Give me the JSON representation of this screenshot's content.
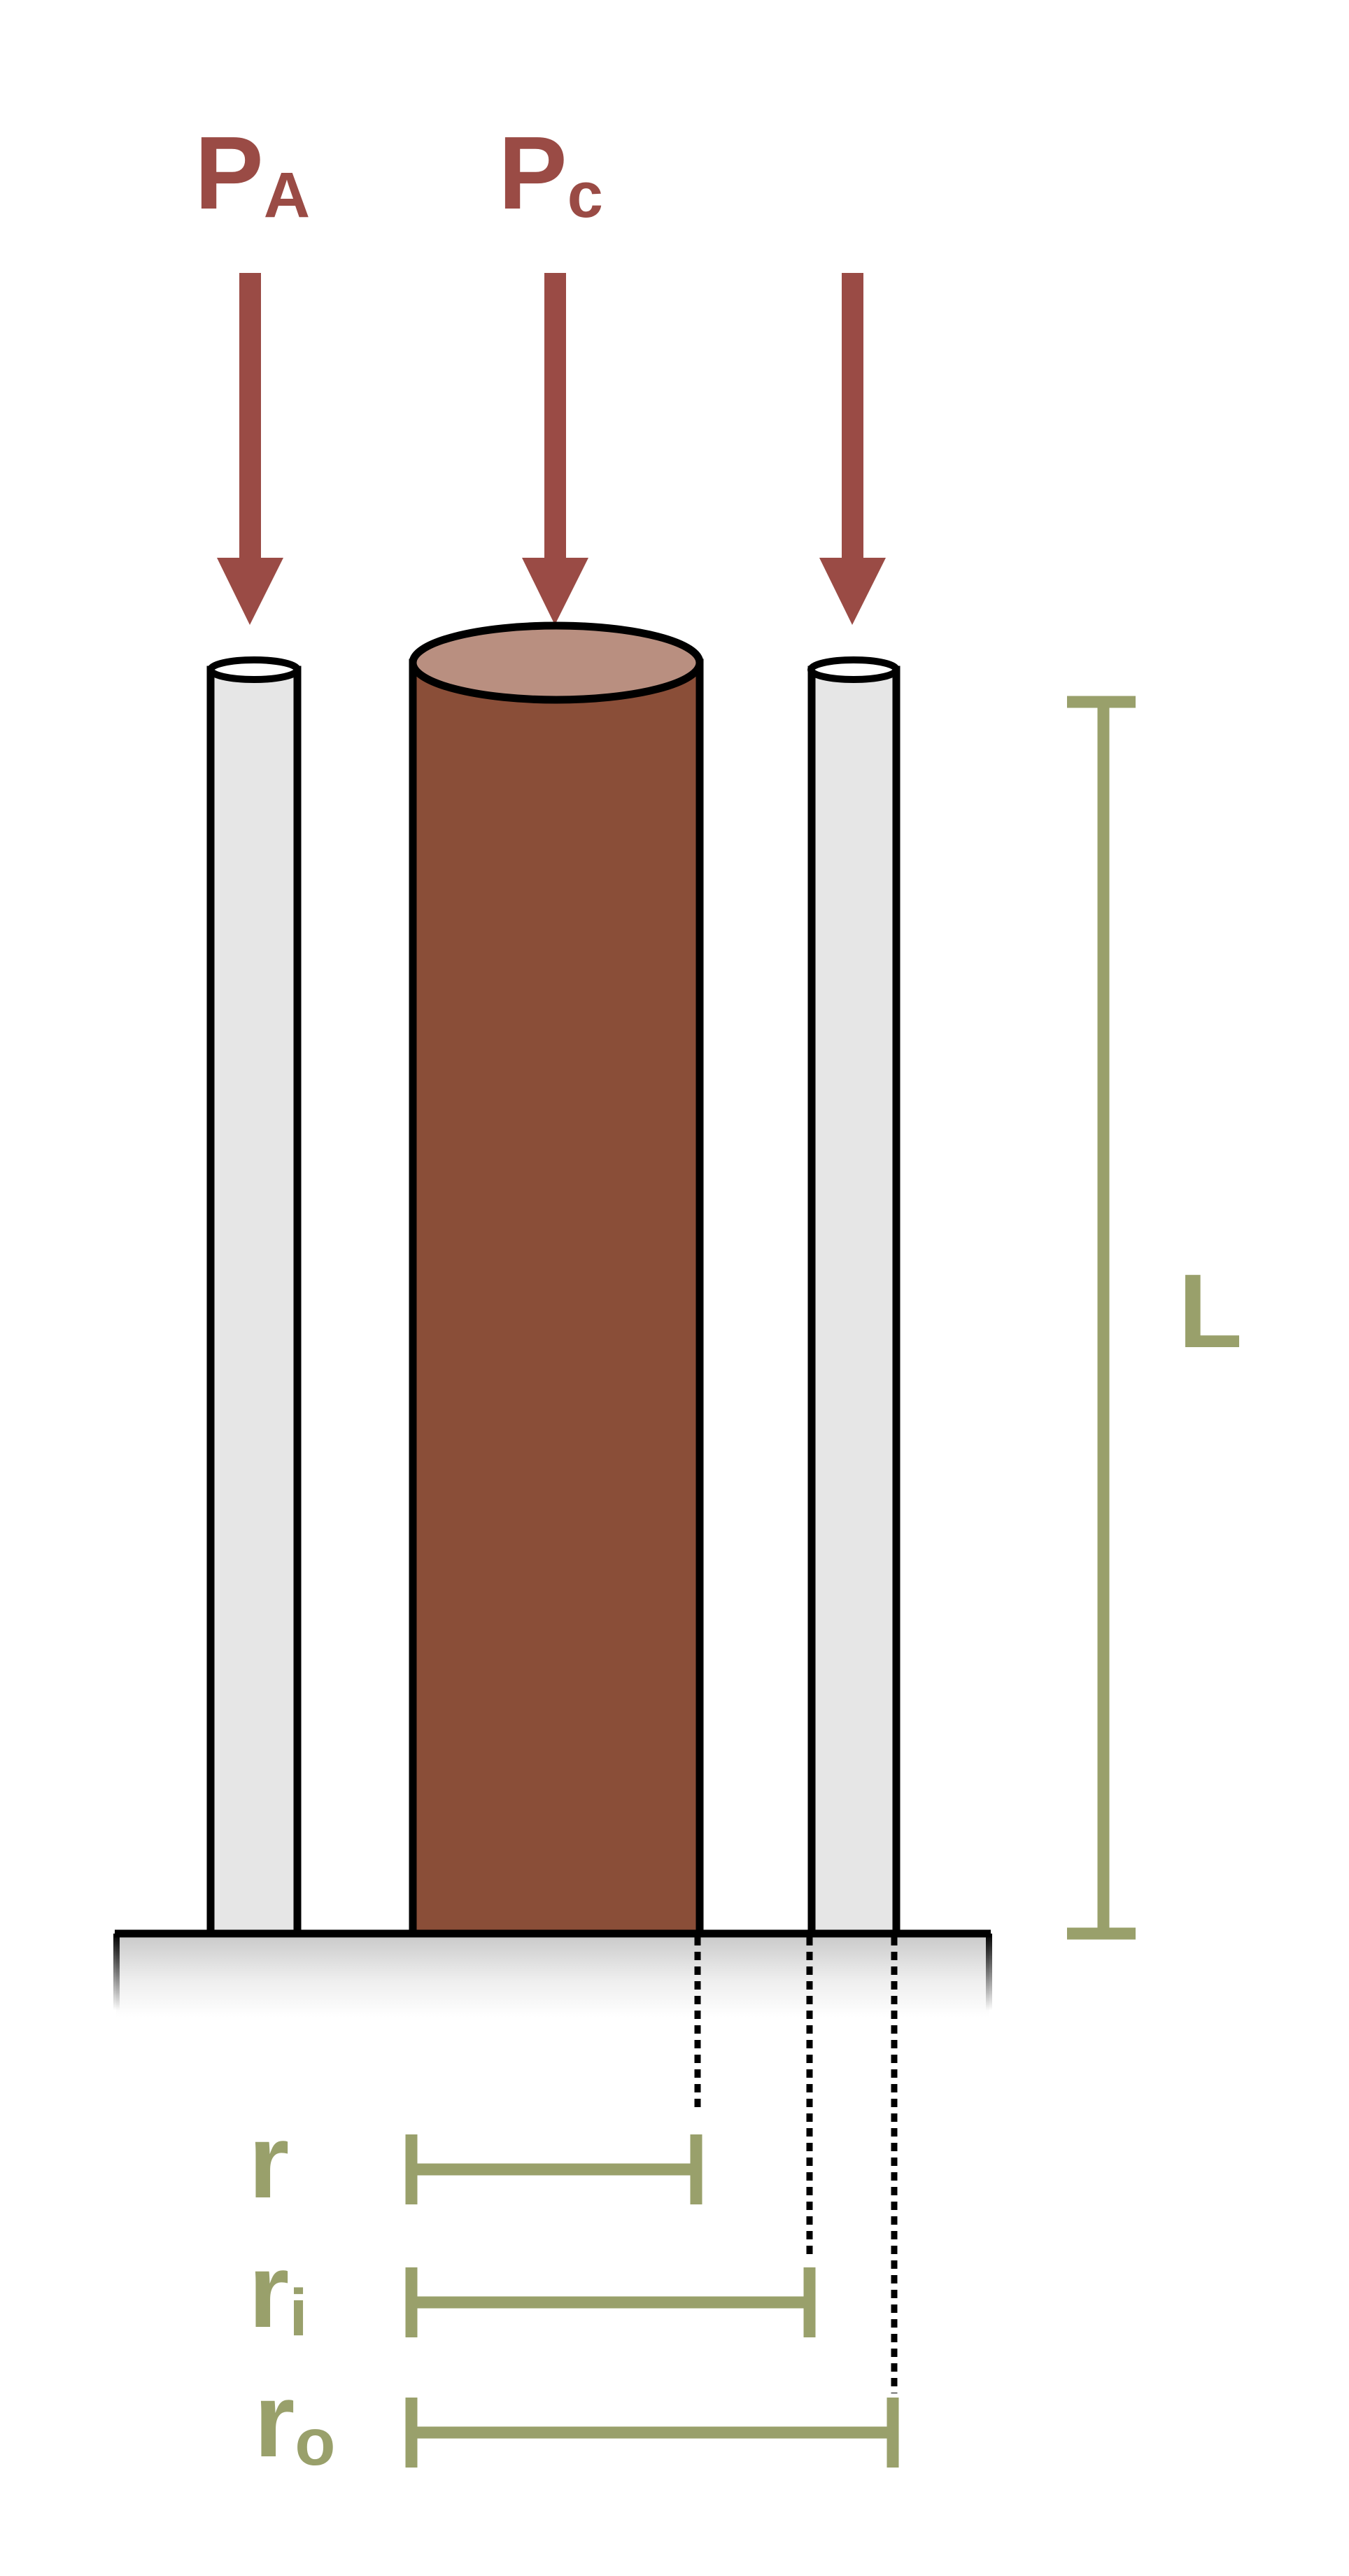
{
  "loads": {
    "pa": {
      "main": "P",
      "sub": "A"
    },
    "pc": {
      "main": "P",
      "sub": "c"
    }
  },
  "dimensions": {
    "length": {
      "main": "L"
    },
    "r": {
      "main": "r"
    },
    "ri": {
      "main": "r",
      "sub": "i"
    },
    "ro": {
      "main": "r",
      "sub": "o"
    }
  },
  "colors": {
    "arrow": "#9a4b45",
    "core_fill": "#8a4e38",
    "core_top": "#b98f80",
    "tube_fill": "#e6e6e6",
    "dimension": "#99a06b",
    "outline": "#000000"
  }
}
